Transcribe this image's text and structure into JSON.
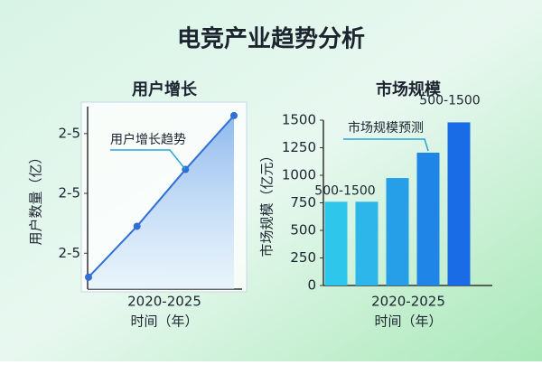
{
  "title": "电竞产业趋势分析",
  "chart_data": [
    {
      "type": "line",
      "title": "用户增长",
      "categories": [
        null,
        null,
        null,
        null
      ],
      "x_range_label": "2020-2025",
      "xlabel": "时间（年）",
      "ylabel": "用户数量（亿）",
      "series": [
        {
          "name": "用户增长趋势",
          "color": "#2f6fd6",
          "values": [
            0.6,
            1.45,
            2.4,
            3.3
          ]
        }
      ],
      "fill": true,
      "ylim": [
        0.4,
        3.45
      ],
      "yticks": [
        {
          "value": 1,
          "label": "2-5"
        },
        {
          "value": 2,
          "label": "2-5"
        },
        {
          "value": 3,
          "label": "2-5"
        }
      ]
    },
    {
      "type": "bar",
      "title": "市场规模",
      "categories": [
        null,
        null,
        null,
        null,
        null
      ],
      "x_range_label": "2020-2025",
      "xlabel": "时间（年）",
      "ylabel": "市场规模（亿元）",
      "values": [
        760,
        760,
        975,
        1205,
        1480
      ],
      "colors": [
        "#2ec6ea",
        "#2db6ea",
        "#269ee8",
        "#1f86e8",
        "#1a6be6"
      ],
      "ylim": [
        0,
        1500
      ],
      "yticks": [
        0,
        250,
        500,
        750,
        1000,
        1250,
        1500
      ],
      "annotations": [
        {
          "text": "500-1500",
          "at": 0
        },
        {
          "text": "500-1500",
          "at": 4
        },
        {
          "text": "市场规模预测",
          "at": 3
        }
      ]
    }
  ]
}
